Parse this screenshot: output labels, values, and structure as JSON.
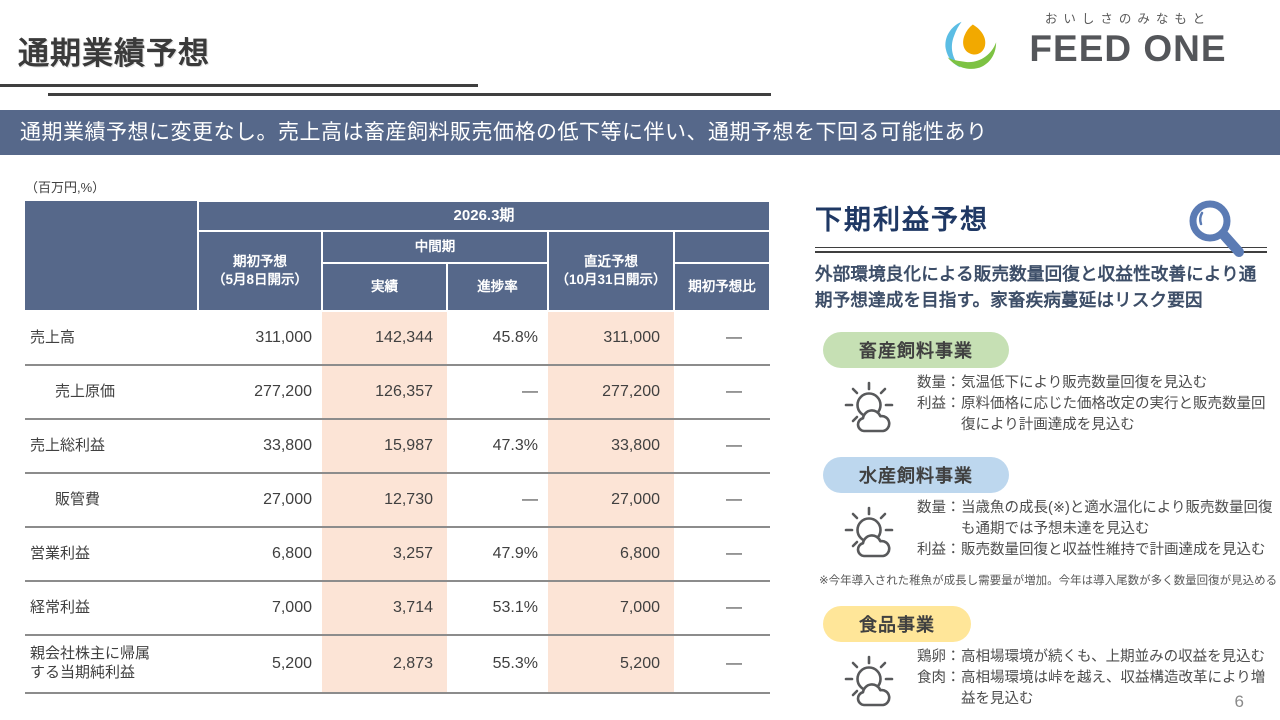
{
  "page": {
    "number": "6"
  },
  "header": {
    "title": "通期業績予想",
    "logo": {
      "tagline": "おいしさのみなもと",
      "brand": "FEED ONE"
    }
  },
  "banner": {
    "text": "通期業績予想に変更なし。売上高は畜産飼料販売価格の低下等に伴い、通期予想を下回る可能性あり"
  },
  "table": {
    "unit_label": "（百万円,%）",
    "header": {
      "period": "2026.3期",
      "initial_forecast": "期初予想\n（5月8日開示）",
      "interim": "中間期",
      "actual": "実績",
      "progress": "進捗率",
      "latest_forecast": "直近予想\n（10月31日開示）",
      "vs_initial": "期初予想比"
    },
    "rows": [
      {
        "label": "売上高",
        "indent": false,
        "tall": false,
        "cells": [
          "311,000",
          "142,344",
          "45.8%",
          "311,000",
          "—"
        ]
      },
      {
        "label": "売上原価",
        "indent": true,
        "tall": false,
        "cells": [
          "277,200",
          "126,357",
          "—",
          "277,200",
          "—"
        ]
      },
      {
        "label": "売上総利益",
        "indent": false,
        "tall": false,
        "cells": [
          "33,800",
          "15,987",
          "47.3%",
          "33,800",
          "—"
        ]
      },
      {
        "label": "販管費",
        "indent": true,
        "tall": false,
        "cells": [
          "27,000",
          "12,730",
          "—",
          "27,000",
          "—"
        ]
      },
      {
        "label": "営業利益",
        "indent": false,
        "tall": false,
        "cells": [
          "6,800",
          "3,257",
          "47.9%",
          "6,800",
          "—"
        ]
      },
      {
        "label": "経常利益",
        "indent": false,
        "tall": false,
        "cells": [
          "7,000",
          "3,714",
          "53.1%",
          "7,000",
          "—"
        ]
      },
      {
        "label": "親会社株主に帰属\nする当期純利益",
        "indent": false,
        "tall": true,
        "cells": [
          "5,200",
          "2,873",
          "55.3%",
          "5,200",
          "—"
        ]
      }
    ]
  },
  "panel": {
    "title": "下期利益予想",
    "lead": "外部環境良化による販売数量回復と収益性改善により通期予想達成を目指す。家畜疾病蔓延はリスク要因",
    "segments": [
      {
        "name": "畜産飼料事業",
        "badge_color": "#c6e0b4",
        "items": [
          {
            "label": "数量：",
            "text": "気温低下により販売数量回復を見込む"
          },
          {
            "label": "利益：",
            "text": "原料価格に応じた価格改定の実行と販売数量回復により計画達成を見込む"
          }
        ],
        "note": ""
      },
      {
        "name": "水産飼料事業",
        "badge_color": "#bdd7ee",
        "items": [
          {
            "label": "数量：",
            "text": "当歳魚の成長(※)と適水温化により販売数量回復も通期では予想未達を見込む"
          },
          {
            "label": "利益：",
            "text": "販売数量回復と収益性維持で計画達成を見込む"
          }
        ],
        "note": "※今年導入された稚魚が成長し需要量が増加。今年は導入尾数が多く数量回復が見込める"
      },
      {
        "name": "食品事業",
        "badge_color": "#ffe699",
        "items": [
          {
            "label": "鶏卵：",
            "text": "高相場環境が続くも、上期並みの収益を見込む"
          },
          {
            "label": "食肉：",
            "text": "高相場環境は峠を越え、収益構造改革により増益を見込む"
          }
        ],
        "note": ""
      }
    ]
  },
  "colors": {
    "slate_header": "#56688a",
    "peach_highlight": "#fce4d6",
    "panel_title_navy": "#1f3864",
    "magnifier_blue": "#5b7bb4",
    "logo_orange": "#f2a900",
    "logo_green": "#7dc243",
    "logo_blue": "#5bbde4"
  }
}
